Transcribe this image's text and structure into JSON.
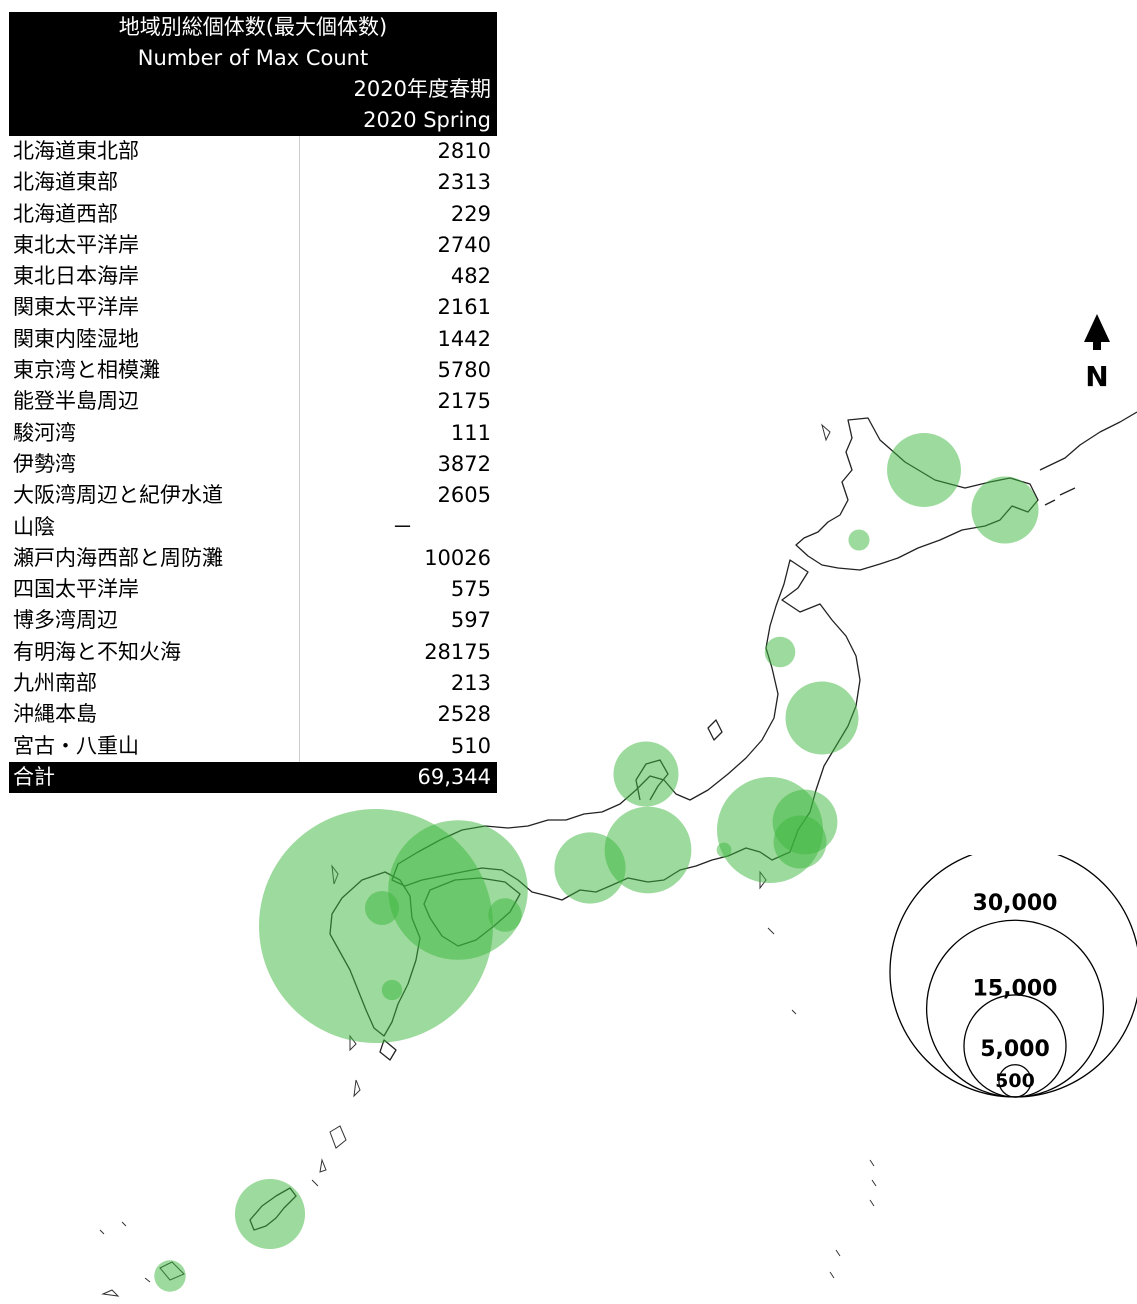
{
  "table": {
    "title_ja": "地域別総個体数(最大個体数)",
    "title_en": "Number of Max Count",
    "season_ja": "2020年度春期",
    "season_en": "2020 Spring",
    "rows": [
      {
        "name": "北海道東北部",
        "value": "2810"
      },
      {
        "name": "北海道東部",
        "value": "2313"
      },
      {
        "name": "北海道西部",
        "value": "229"
      },
      {
        "name": "東北太平洋岸",
        "value": "2740"
      },
      {
        "name": "東北日本海岸",
        "value": "482"
      },
      {
        "name": "関東太平洋岸",
        "value": "2161"
      },
      {
        "name": "関東内陸湿地",
        "value": "1442"
      },
      {
        "name": "東京湾と相模灘",
        "value": "5780"
      },
      {
        "name": "能登半島周辺",
        "value": "2175"
      },
      {
        "name": "駿河湾",
        "value": "111"
      },
      {
        "name": "伊勢湾",
        "value": "3872"
      },
      {
        "name": "大阪湾周辺と紀伊水道",
        "value": "2605"
      },
      {
        "name": "山陰",
        "value": "－"
      },
      {
        "name": "瀬戸内海西部と周防灘",
        "value": "10026"
      },
      {
        "name": "四国太平洋岸",
        "value": "575"
      },
      {
        "name": "博多湾周辺",
        "value": "597"
      },
      {
        "name": "有明海と不知火海",
        "value": "28175"
      },
      {
        "name": "九州南部",
        "value": "213"
      },
      {
        "name": "沖縄本島",
        "value": "2528"
      },
      {
        "name": "宮古・八重山",
        "value": "510"
      }
    ],
    "total_label": "合計",
    "total_value": "69,344"
  },
  "north": {
    "letter": "N"
  },
  "legend": {
    "circles": [
      {
        "value": 30000,
        "label": "30,000"
      },
      {
        "value": 15000,
        "label": "15,000"
      },
      {
        "value": 5000,
        "label": "5,000"
      },
      {
        "value": 500,
        "label": "500"
      }
    ]
  },
  "colors": {
    "bubble": "#3cb63c",
    "coast": "#222222",
    "header_bg": "#000000"
  }
}
